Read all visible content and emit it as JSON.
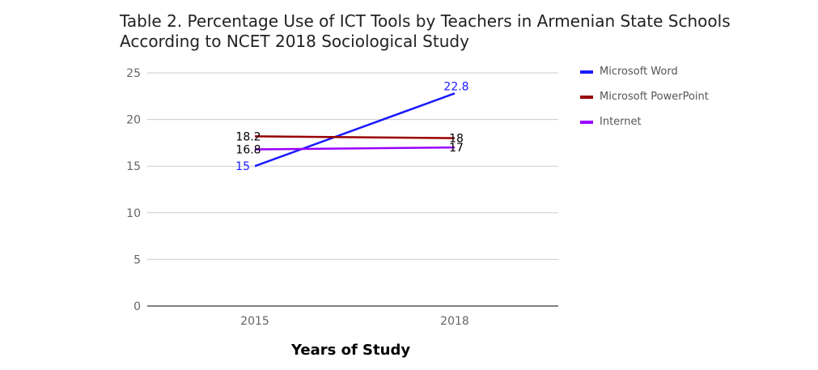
{
  "chart_data": {
    "type": "line",
    "title": "Table 2. Percentage Use of ICT Tools by Teachers in Armenian State Schools According to NCET 2018 Sociological Study",
    "title_lines": [
      "Table 2. Percentage Use of ICT Tools by Teachers in Armenian State Schools",
      "According to NCET 2018 Sociological Study"
    ],
    "xlabel": "Years of Study",
    "ylabel": "",
    "categories": [
      "2015",
      "2018"
    ],
    "ylim": [
      0,
      25
    ],
    "yticks": [
      "0",
      "5",
      "10",
      "15",
      "20",
      "25"
    ],
    "grid": true,
    "legend_position": "right",
    "series": [
      {
        "name": "Microsoft Word",
        "values": [
          15,
          22.8
        ],
        "labels": [
          "15",
          "22.8"
        ],
        "color": "#1a1aff",
        "label_color": "#1a1aff"
      },
      {
        "name": "Microsoft PowerPoint",
        "values": [
          18.2,
          18
        ],
        "labels": [
          "18.2",
          "18"
        ],
        "color": "#990000",
        "label_color": "#000000"
      },
      {
        "name": "Internet",
        "values": [
          16.8,
          17
        ],
        "labels": [
          "16.8",
          "17"
        ],
        "color": "#9900ff",
        "label_color": "#000000"
      }
    ]
  }
}
